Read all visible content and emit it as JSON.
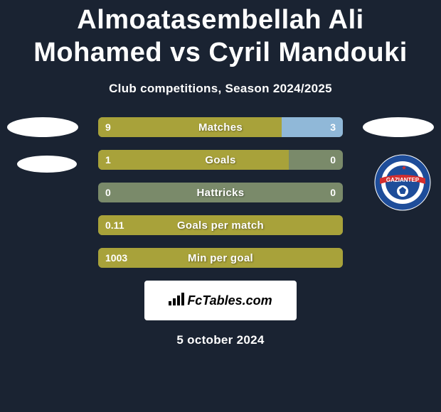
{
  "title": "Almoatasembellah Ali Mohamed vs Cyril Mandouki",
  "subtitle": "Club competitions, Season 2024/2025",
  "date": "5 october 2024",
  "fctables_label": "FcTables.com",
  "colors": {
    "left": "#a8a23a",
    "right": "#90b8d8",
    "neutral": "#7a8a6a",
    "bg": "#1a2332"
  },
  "club_logo": {
    "name": "GAZIANTEP",
    "outer": "#1e4d9a",
    "inner": "#ffffff",
    "ribbon": "#d32f2f"
  },
  "stats": [
    {
      "label": "Matches",
      "left_val": "9",
      "right_val": "3",
      "left_pct": 75,
      "right_pct": 25
    },
    {
      "label": "Goals",
      "left_val": "1",
      "right_val": "0",
      "left_pct": 78,
      "right_pct": 0
    },
    {
      "label": "Hattricks",
      "left_val": "0",
      "right_val": "0",
      "left_pct": 0,
      "right_pct": 0
    },
    {
      "label": "Goals per match",
      "left_val": "0.11",
      "right_val": "",
      "left_pct": 100,
      "right_pct": 0
    },
    {
      "label": "Min per goal",
      "left_val": "1003",
      "right_val": "",
      "left_pct": 100,
      "right_pct": 0
    }
  ]
}
